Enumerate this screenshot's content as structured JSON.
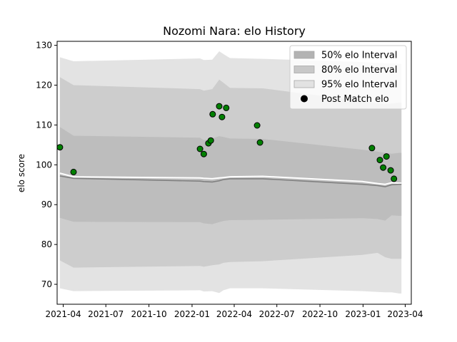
{
  "chart_data": {
    "type": "line",
    "title": "Nozomi Nara: elo History",
    "xlabel": "",
    "ylabel": "elo score",
    "xlim": [
      "2021-03-19",
      "2023-04-14"
    ],
    "ylim": [
      65,
      131
    ],
    "x_ticks": [
      "2021-04",
      "2021-07",
      "2021-10",
      "2022-01",
      "2022-04",
      "2022-07",
      "2022-10",
      "2023-01",
      "2023-04"
    ],
    "y_ticks": [
      70,
      80,
      90,
      100,
      110,
      120,
      130
    ],
    "grid": false,
    "legend_position": "top-right",
    "legend": [
      {
        "label": "50% elo Interval",
        "kind": "patch",
        "color": "#b3b3b3"
      },
      {
        "label": "80% elo Interval",
        "kind": "patch",
        "color": "#c8c8c8"
      },
      {
        "label": "95% elo Interval",
        "kind": "patch",
        "color": "#e2e2e2"
      },
      {
        "label": "Post Match elo",
        "kind": "marker",
        "color": "#000000"
      }
    ],
    "bands": [
      {
        "name": "95% elo Interval",
        "color": "#e3e3e3",
        "x": [
          "2021-03-25",
          "2021-04-23",
          "2022-01-18",
          "2022-01-26",
          "2022-02-13",
          "2022-02-28",
          "2022-03-09",
          "2022-03-23",
          "2022-06-01",
          "2022-12-31",
          "2023-02-01",
          "2023-02-17",
          "2023-03-03",
          "2023-03-19",
          "2023-03-24"
        ],
        "upper": [
          127.0,
          126.0,
          126.7,
          126.3,
          126.4,
          128.5,
          127.8,
          126.8,
          126.6,
          125.8,
          125.6,
          125.5,
          125.5,
          125.3,
          125.3
        ],
        "lower": [
          69.0,
          68.3,
          68.5,
          68.2,
          68.3,
          67.8,
          68.5,
          69.0,
          69.0,
          68.3,
          68.1,
          68.0,
          68.0,
          67.7,
          67.7
        ]
      },
      {
        "name": "80% elo Interval",
        "color": "#cdcdcd",
        "x": [
          "2021-03-25",
          "2021-04-23",
          "2022-01-18",
          "2022-01-26",
          "2022-02-13",
          "2022-02-28",
          "2022-03-09",
          "2022-03-23",
          "2022-06-01",
          "2022-12-31",
          "2023-02-01",
          "2023-02-17",
          "2023-03-03",
          "2023-03-19",
          "2023-03-24"
        ],
        "upper": [
          122.0,
          120.0,
          119.0,
          118.6,
          119.0,
          121.4,
          120.6,
          119.3,
          119.2,
          116.0,
          115.4,
          115.2,
          115.4,
          115.6,
          115.6
        ],
        "lower": [
          76.0,
          74.2,
          74.6,
          74.4,
          74.8,
          75.0,
          75.4,
          75.6,
          75.8,
          77.4,
          77.9,
          76.8,
          76.4,
          76.4,
          76.4
        ]
      },
      {
        "name": "50% elo Interval",
        "color": "#bdbdbd",
        "x": [
          "2021-03-25",
          "2021-04-23",
          "2022-01-18",
          "2022-01-26",
          "2022-02-13",
          "2022-02-28",
          "2022-03-09",
          "2022-03-23",
          "2022-06-01",
          "2022-12-31",
          "2023-02-01",
          "2023-02-17",
          "2023-03-03",
          "2023-03-19",
          "2023-03-24"
        ],
        "upper": [
          109.5,
          107.3,
          106.8,
          106.2,
          106.6,
          107.2,
          107.0,
          106.6,
          106.5,
          103.8,
          103.3,
          103.0,
          102.8,
          103.0,
          103.0
        ],
        "lower": [
          86.7,
          85.7,
          85.6,
          85.3,
          85.1,
          85.6,
          85.9,
          86.1,
          86.2,
          86.6,
          86.4,
          86.0,
          87.3,
          87.2,
          87.2
        ]
      }
    ],
    "series": [
      {
        "name": "",
        "role": "mean-line",
        "color": "#ffffff",
        "x": [
          "2021-03-25",
          "2021-04-23",
          "2022-01-18",
          "2022-01-26",
          "2022-02-13",
          "2022-02-28",
          "2022-03-09",
          "2022-03-23",
          "2022-06-01",
          "2022-12-31",
          "2023-02-01",
          "2023-02-17",
          "2023-03-03",
          "2023-03-19",
          "2023-03-24"
        ],
        "values": [
          97.9,
          97.0,
          96.7,
          96.6,
          96.5,
          96.7,
          96.8,
          97.0,
          97.1,
          95.8,
          95.3,
          95.1,
          95.5,
          95.4,
          95.4
        ]
      },
      {
        "name": "",
        "role": "median-line",
        "color": "#808080",
        "x": [
          "2021-03-25",
          "2021-04-23",
          "2022-01-18",
          "2022-01-26",
          "2022-02-13",
          "2022-02-28",
          "2022-03-09",
          "2022-03-23",
          "2022-06-01",
          "2022-12-31",
          "2023-02-01",
          "2023-02-17",
          "2023-03-03",
          "2023-03-19",
          "2023-03-24"
        ],
        "values": [
          97.2,
          96.6,
          95.9,
          95.8,
          95.7,
          96.0,
          96.3,
          96.5,
          96.5,
          95.1,
          94.8,
          94.5,
          95.0,
          95.1,
          95.1
        ]
      },
      {
        "name": "Post Match elo",
        "role": "points",
        "color": "#008000",
        "x": [
          "2021-03-25",
          "2021-04-23",
          "2022-01-18",
          "2022-01-26",
          "2022-02-05",
          "2022-02-10",
          "2022-02-14",
          "2022-02-28",
          "2022-03-06",
          "2022-03-15",
          "2022-05-20",
          "2022-05-26",
          "2023-01-20",
          "2023-02-06",
          "2023-02-13",
          "2023-02-20",
          "2023-03-01",
          "2023-03-08"
        ],
        "values": [
          104.4,
          98.2,
          104.0,
          102.7,
          105.4,
          106.1,
          112.7,
          114.7,
          112.0,
          114.3,
          109.9,
          105.6,
          104.2,
          101.2,
          99.3,
          102.1,
          98.6,
          96.5
        ]
      }
    ]
  }
}
